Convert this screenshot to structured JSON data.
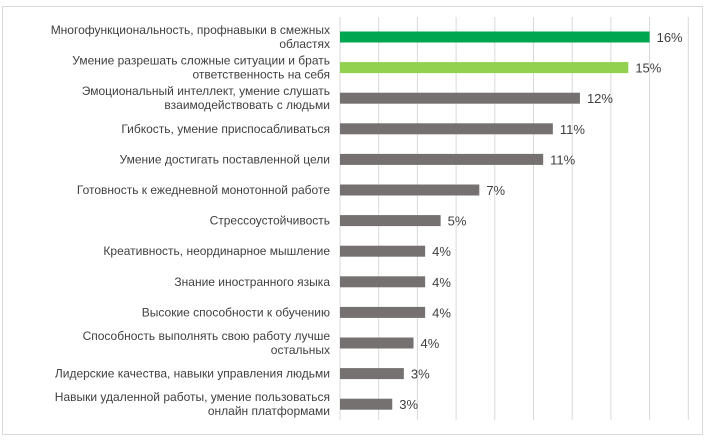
{
  "chart_data": {
    "type": "bar",
    "orientation": "horizontal",
    "title": "",
    "xlabel": "",
    "ylabel": "",
    "xlim": [
      0,
      18
    ],
    "grid": "vertical",
    "categories": [
      [
        "Многофункциональность, профнавыки в смежных",
        "областях"
      ],
      [
        "Умение разрешать сложные ситуации и брать",
        "ответственность на себя"
      ],
      [
        "Эмоциональный интеллект, умение слушать",
        "взаимодействовать с людьми"
      ],
      [
        "Гибкость, умение приспосабливаться"
      ],
      [
        "Умение достигать поставленной цели"
      ],
      [
        "Готовность к ежедневной монотонной работе"
      ],
      [
        "Стрессоустойчивость"
      ],
      [
        "Креативность, неординарное мышление"
      ],
      [
        "Знание иностранного языка"
      ],
      [
        "Высокие способности к обучению"
      ],
      [
        "Способность выполнять свою работу лучше",
        "остальных"
      ],
      [
        "Лидерские качества, навыки управления людьми"
      ],
      [
        "Навыки удаленной работы, умение пользоваться",
        "онлайн платформами"
      ]
    ],
    "values": [
      16.0,
      14.9,
      12.4,
      11.0,
      10.5,
      7.2,
      5.2,
      4.4,
      4.4,
      4.4,
      3.8,
      3.3,
      2.7
    ],
    "labels": [
      "16%",
      "15%",
      "12%",
      "11%",
      "11%",
      "7%",
      "5%",
      "4%",
      "4%",
      "4%",
      "4%",
      "3%",
      "3%"
    ],
    "colors": [
      "#00A650",
      "#92D050",
      "#767171",
      "#767171",
      "#767171",
      "#767171",
      "#767171",
      "#767171",
      "#767171",
      "#767171",
      "#767171",
      "#767171",
      "#767171"
    ]
  }
}
